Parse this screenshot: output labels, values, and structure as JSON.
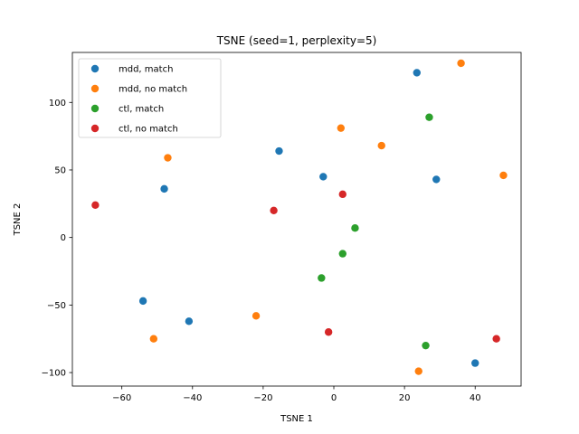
{
  "chart_data": {
    "type": "scatter",
    "title": "TSNE (seed=1, perplexity=5)",
    "xlabel": "TSNE 1",
    "ylabel": "TSNE 2",
    "xlim": [
      -74,
      53
    ],
    "ylim": [
      -110,
      137
    ],
    "xticks": [
      -60,
      -40,
      -20,
      0,
      20,
      40
    ],
    "yticks": [
      -100,
      -50,
      0,
      50,
      100
    ],
    "xtick_labels": [
      "−60",
      "−40",
      "−20",
      "0",
      "20",
      "40"
    ],
    "ytick_labels": [
      "−100",
      "−50",
      "0",
      "50",
      "100"
    ],
    "grid": false,
    "legend_position": "upper-left",
    "series": [
      {
        "name": "mdd, match",
        "color": "#1f77b4",
        "points": [
          {
            "x": 23.5,
            "y": 122
          },
          {
            "x": -15.5,
            "y": 64
          },
          {
            "x": -3,
            "y": 45
          },
          {
            "x": 29,
            "y": 43
          },
          {
            "x": -48,
            "y": 36
          },
          {
            "x": -54,
            "y": -47
          },
          {
            "x": -41,
            "y": -62
          },
          {
            "x": 40,
            "y": -93
          }
        ]
      },
      {
        "name": "mdd, no match",
        "color": "#ff7f0e",
        "points": [
          {
            "x": 36,
            "y": 129
          },
          {
            "x": 2,
            "y": 81
          },
          {
            "x": 13.5,
            "y": 68
          },
          {
            "x": -47,
            "y": 59
          },
          {
            "x": 48,
            "y": 46
          },
          {
            "x": -22,
            "y": -58
          },
          {
            "x": -51,
            "y": -75
          },
          {
            "x": 24,
            "y": -99
          }
        ]
      },
      {
        "name": "ctl, match",
        "color": "#2ca02c",
        "points": [
          {
            "x": 27,
            "y": 89
          },
          {
            "x": 6,
            "y": 7
          },
          {
            "x": 2.5,
            "y": -12
          },
          {
            "x": -3.5,
            "y": -30
          },
          {
            "x": 26,
            "y": -80
          }
        ]
      },
      {
        "name": "ctl, no match",
        "color": "#d62728",
        "points": [
          {
            "x": 2.5,
            "y": 32
          },
          {
            "x": -67.5,
            "y": 24
          },
          {
            "x": -17,
            "y": 20
          },
          {
            "x": -1.5,
            "y": -70
          },
          {
            "x": 46,
            "y": -75
          }
        ]
      }
    ]
  }
}
